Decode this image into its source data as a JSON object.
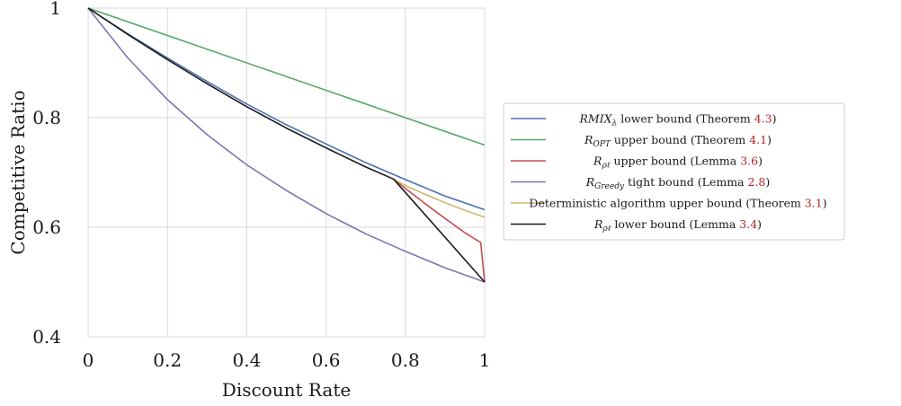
{
  "chart_data": {
    "type": "line",
    "xlabel": "Discount Rate",
    "ylabel": "Competitive Ratio",
    "xlim": [
      0,
      1
    ],
    "ylim": [
      0.4,
      1.0
    ],
    "x_ticks": [
      0,
      0.2,
      0.4,
      0.6,
      0.8,
      1
    ],
    "x_tick_labels": [
      "0",
      "0.2",
      "0.4",
      "0.6",
      "0.8",
      "1"
    ],
    "y_ticks": [
      0.4,
      0.6,
      0.8,
      1.0
    ],
    "y_tick_labels": [
      "0.4",
      "0.6",
      "0.8",
      "1"
    ],
    "grid": true,
    "legend_position": "right, outside plot",
    "series": [
      {
        "name_main": "RMIX",
        "name_sub": "λ",
        "name_text": " lower bound (Theorem ",
        "name_ref": "4.3",
        "name_end": ")",
        "color": "#4c72b0",
        "x": [
          0,
          0.1,
          0.2,
          0.3,
          0.4,
          0.5,
          0.6,
          0.7,
          0.8,
          0.9,
          1.0
        ],
        "y": [
          1.0,
          0.953,
          0.909,
          0.866,
          0.825,
          0.787,
          0.752,
          0.718,
          0.687,
          0.657,
          0.632
        ]
      },
      {
        "name_main": "R",
        "name_sub": "OPT",
        "name_text": " upper bound (Theorem ",
        "name_ref": "4.1",
        "name_end": ")",
        "color": "#55a868",
        "x": [
          0,
          1.0
        ],
        "y": [
          1.0,
          0.75
        ]
      },
      {
        "name_main": "R",
        "name_sub": "ρℓ",
        "name_text": " upper bound (Lemma ",
        "name_ref": "3.6",
        "name_end": ")",
        "color": "#c44e52",
        "x": [
          0.77,
          0.8,
          0.85,
          0.9,
          0.95,
          0.99,
          1.0
        ],
        "y": [
          0.688,
          0.671,
          0.643,
          0.616,
          0.59,
          0.572,
          0.5
        ]
      },
      {
        "name_main": "R",
        "name_sub": "Greedy",
        "name_text": " tight bound (Lemma ",
        "name_ref": "2.8",
        "name_end": ")",
        "color": "#8172b2",
        "x": [
          0,
          0.1,
          0.2,
          0.3,
          0.4,
          0.5,
          0.6,
          0.7,
          0.8,
          0.9,
          1.0
        ],
        "y": [
          1.0,
          0.909,
          0.833,
          0.769,
          0.714,
          0.667,
          0.625,
          0.588,
          0.556,
          0.526,
          0.5
        ]
      },
      {
        "name_main": "",
        "name_sub": "",
        "name_text": "Deterministic algorithm upper bound (Theorem ",
        "name_ref": "3.1",
        "name_end": ")",
        "color": "#ccb974",
        "x": [
          0.77,
          0.8,
          0.85,
          0.9,
          0.95,
          1.0
        ],
        "y": [
          0.688,
          0.676,
          0.66,
          0.645,
          0.631,
          0.618
        ]
      },
      {
        "name_main": "R",
        "name_sub": "ρℓ",
        "name_text": " lower bound (Lemma ",
        "name_ref": "3.4",
        "name_end": ")",
        "color": "#1a1a1a",
        "x": [
          0,
          0.1,
          0.2,
          0.3,
          0.4,
          0.5,
          0.6,
          0.7,
          0.77,
          1.0
        ],
        "y": [
          1.0,
          0.952,
          0.906,
          0.862,
          0.82,
          0.781,
          0.745,
          0.71,
          0.688,
          0.5
        ]
      }
    ]
  }
}
